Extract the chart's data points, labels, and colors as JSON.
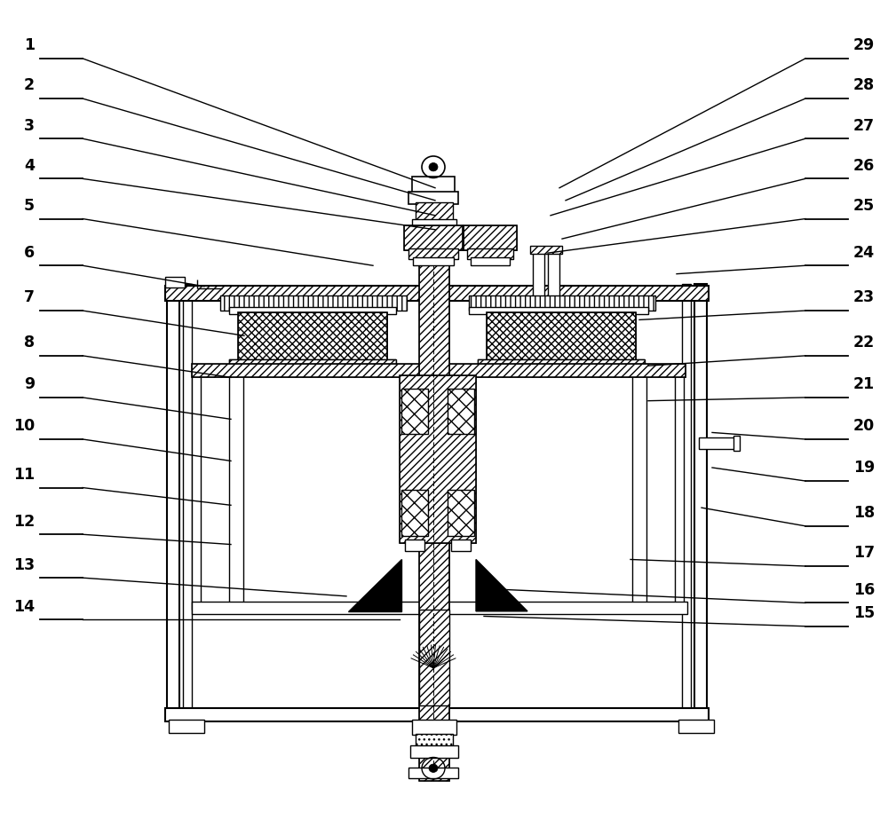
{
  "bg_color": "#ffffff",
  "fig_width": 10.0,
  "fig_height": 9.41,
  "left_labels": [
    [
      1,
      0.045,
      0.93,
      0.49,
      0.775
    ],
    [
      2,
      0.045,
      0.882,
      0.49,
      0.76
    ],
    [
      3,
      0.045,
      0.834,
      0.49,
      0.742
    ],
    [
      4,
      0.045,
      0.786,
      0.49,
      0.725
    ],
    [
      5,
      0.045,
      0.738,
      0.42,
      0.682
    ],
    [
      6,
      0.045,
      0.682,
      0.23,
      0.657
    ],
    [
      7,
      0.045,
      0.628,
      0.275,
      0.598
    ],
    [
      8,
      0.045,
      0.574,
      0.26,
      0.548
    ],
    [
      9,
      0.045,
      0.524,
      0.26,
      0.498
    ],
    [
      10,
      0.045,
      0.474,
      0.26,
      0.448
    ],
    [
      11,
      0.045,
      0.416,
      0.26,
      0.395
    ],
    [
      12,
      0.045,
      0.36,
      0.26,
      0.348
    ],
    [
      13,
      0.045,
      0.308,
      0.39,
      0.286
    ],
    [
      14,
      0.045,
      0.258,
      0.45,
      0.258
    ]
  ],
  "right_labels": [
    [
      29,
      0.955,
      0.93,
      0.63,
      0.775
    ],
    [
      28,
      0.955,
      0.882,
      0.637,
      0.76
    ],
    [
      27,
      0.955,
      0.834,
      0.62,
      0.742
    ],
    [
      26,
      0.955,
      0.786,
      0.633,
      0.714
    ],
    [
      25,
      0.955,
      0.738,
      0.617,
      0.697
    ],
    [
      24,
      0.955,
      0.682,
      0.762,
      0.672
    ],
    [
      23,
      0.955,
      0.628,
      0.72,
      0.617
    ],
    [
      22,
      0.955,
      0.574,
      0.73,
      0.562
    ],
    [
      21,
      0.955,
      0.524,
      0.73,
      0.52
    ],
    [
      20,
      0.955,
      0.474,
      0.802,
      0.482
    ],
    [
      19,
      0.955,
      0.424,
      0.802,
      0.44
    ],
    [
      18,
      0.955,
      0.37,
      0.79,
      0.392
    ],
    [
      17,
      0.955,
      0.322,
      0.71,
      0.33
    ],
    [
      16,
      0.955,
      0.278,
      0.545,
      0.295
    ],
    [
      15,
      0.955,
      0.25,
      0.545,
      0.262
    ]
  ]
}
